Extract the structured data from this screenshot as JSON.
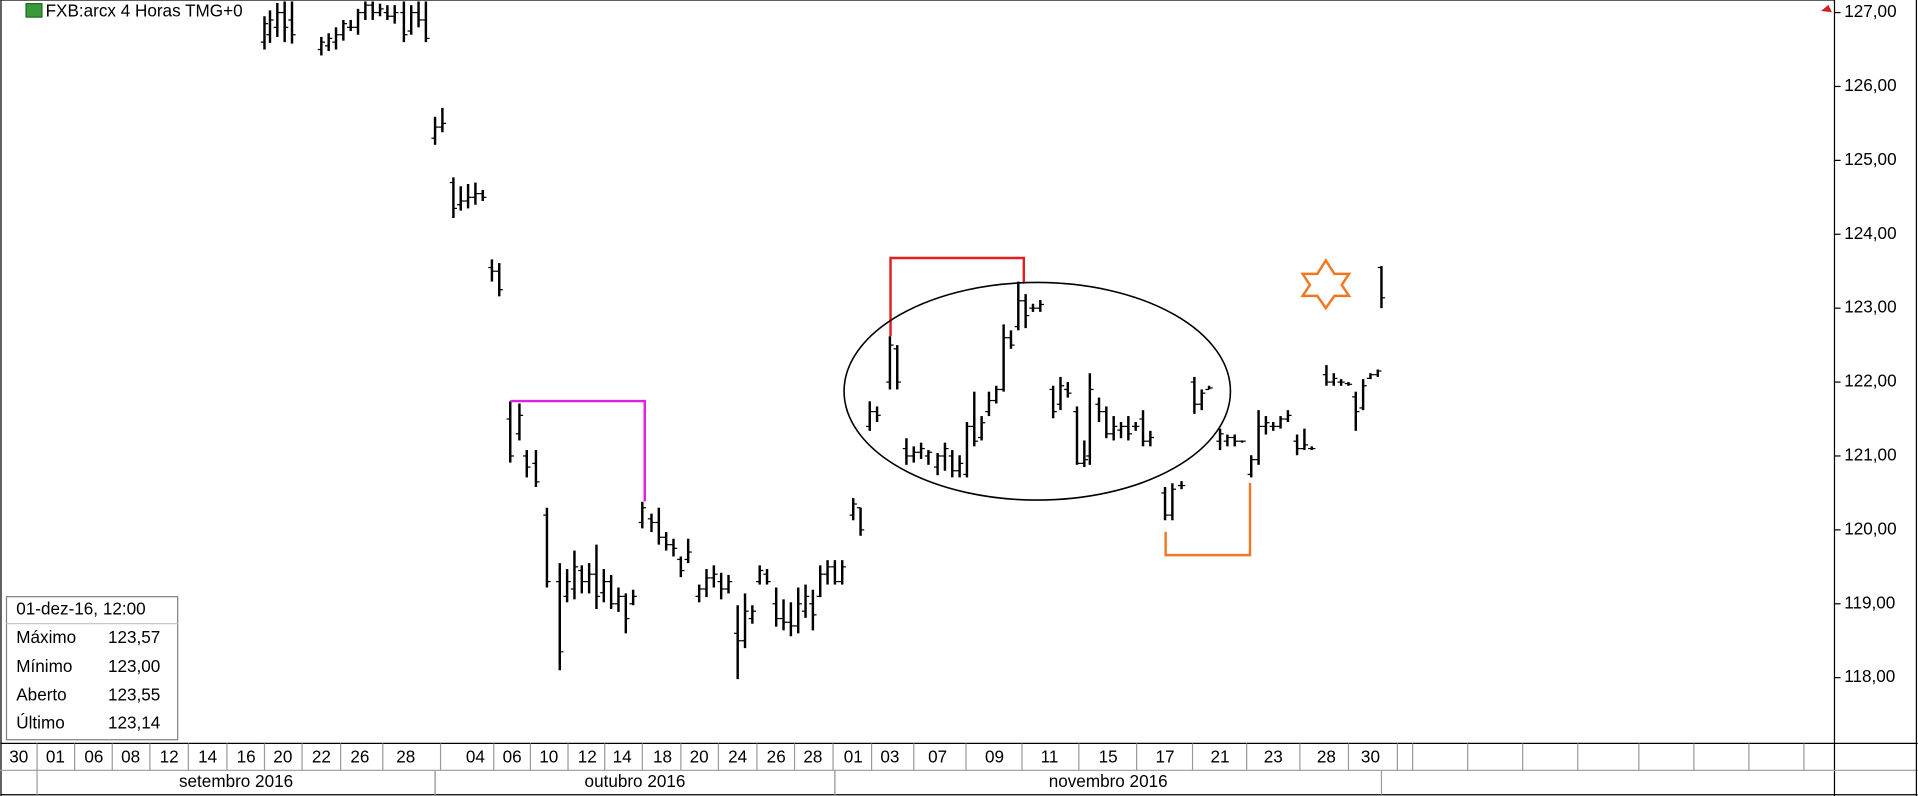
{
  "chart_data": {
    "type": "ohlc",
    "title": "FXB:arcx 4 Horas TMG+0",
    "xlim": [
      0,
      100
    ],
    "ylim": [
      117.16,
      127.17
    ],
    "yticks": [
      {
        "value": 118,
        "label": "118,00"
      },
      {
        "value": 119,
        "label": "119,00"
      },
      {
        "value": 120,
        "label": "120,00"
      },
      {
        "value": 121,
        "label": "121,00"
      },
      {
        "value": 122,
        "label": "122,00"
      },
      {
        "value": 123,
        "label": "123,00"
      },
      {
        "value": 124,
        "label": "124,00"
      },
      {
        "value": 125,
        "label": "125,00"
      },
      {
        "value": 126,
        "label": "126,00"
      },
      {
        "value": 127,
        "label": "127,00"
      }
    ],
    "xticks": [
      {
        "value": 1.0,
        "label": "30"
      },
      {
        "value": 3.0,
        "label": "01"
      },
      {
        "value": 5.1,
        "label": "06"
      },
      {
        "value": 7.1,
        "label": "08"
      },
      {
        "value": 9.2,
        "label": "12"
      },
      {
        "value": 11.3,
        "label": "14"
      },
      {
        "value": 13.4,
        "label": "16"
      },
      {
        "value": 15.4,
        "label": "20"
      },
      {
        "value": 17.5,
        "label": "22"
      },
      {
        "value": 19.6,
        "label": "26"
      },
      {
        "value": 22.1,
        "label": "28"
      },
      {
        "value": 25.9,
        "label": "04"
      },
      {
        "value": 27.9,
        "label": "06"
      },
      {
        "value": 29.9,
        "label": "10"
      },
      {
        "value": 32.0,
        "label": "12"
      },
      {
        "value": 33.9,
        "label": "14"
      },
      {
        "value": 36.1,
        "label": "18"
      },
      {
        "value": 38.1,
        "label": "20"
      },
      {
        "value": 40.2,
        "label": "24"
      },
      {
        "value": 42.3,
        "label": "26"
      },
      {
        "value": 44.3,
        "label": "28"
      },
      {
        "value": 46.5,
        "label": "01"
      },
      {
        "value": 48.5,
        "label": "03"
      },
      {
        "value": 51.1,
        "label": "07"
      },
      {
        "value": 54.2,
        "label": "09"
      },
      {
        "value": 57.2,
        "label": "11"
      },
      {
        "value": 60.4,
        "label": "15"
      },
      {
        "value": 63.5,
        "label": "17"
      },
      {
        "value": 66.5,
        "label": "21"
      },
      {
        "value": 69.4,
        "label": "23"
      },
      {
        "value": 72.3,
        "label": "28"
      },
      {
        "value": 74.7,
        "label": "30"
      }
    ],
    "months": [
      {
        "label": "setembro 2016",
        "start": 2.0,
        "end": 23.7
      },
      {
        "label": "outubro 2016",
        "start": 23.7,
        "end": 45.5
      },
      {
        "label": "novembro 2016",
        "start": 45.5,
        "end": 75.3
      }
    ],
    "color": "#000000",
    "x": [
      14.4,
      14.7,
      15.1,
      15.5,
      15.9,
      17.5,
      17.9,
      18.3,
      18.7,
      19.1,
      19.5,
      19.9,
      20.3,
      20.7,
      21.1,
      21.5,
      22.0,
      22.4,
      22.8,
      23.2,
      23.7,
      24.1,
      24.7,
      25.1,
      25.5,
      25.9,
      26.3,
      26.8,
      27.2,
      27.8,
      28.3,
      28.7,
      29.2,
      29.8,
      30.5,
      30.9,
      31.3,
      31.7,
      32.1,
      32.5,
      32.9,
      33.3,
      33.7,
      34.1,
      34.5,
      35.0,
      35.5,
      35.9,
      36.3,
      36.7,
      37.1,
      37.5,
      38.1,
      38.5,
      38.9,
      39.3,
      39.7,
      40.2,
      40.6,
      41.0,
      41.4,
      41.8,
      42.3,
      42.7,
      43.1,
      43.5,
      43.9,
      44.3,
      44.7,
      45.1,
      45.5,
      45.9,
      46.5,
      46.9,
      47.4,
      47.8,
      48.5,
      48.9,
      49.4,
      49.8,
      50.2,
      50.6,
      51.1,
      51.5,
      51.9,
      52.3,
      52.7,
      53.1,
      53.5,
      53.9,
      54.3,
      54.7,
      55.1,
      55.5,
      55.9,
      56.3,
      56.7,
      57.4,
      57.8,
      58.2,
      58.7,
      59.1,
      59.4,
      59.9,
      60.3,
      60.7,
      61.1,
      61.5,
      61.9,
      62.3,
      62.7,
      63.5,
      63.9,
      64.4,
      65.1,
      65.5,
      65.9,
      66.5,
      66.9,
      67.3,
      67.7,
      68.2,
      68.6,
      69.0,
      69.4,
      69.8,
      70.2,
      70.7,
      71.1,
      71.5,
      72.3,
      72.7,
      73.1,
      73.5,
      73.9,
      74.3,
      74.7,
      75.1,
      75.3
    ],
    "open": [
      126.6,
      126.7,
      126.8,
      127.0,
      126.9,
      126.5,
      126.55,
      126.6,
      126.7,
      126.8,
      126.8,
      127.0,
      127.1,
      127.0,
      127.0,
      126.95,
      127.0,
      126.75,
      127.0,
      126.9,
      125.3,
      125.45,
      124.7,
      124.4,
      124.45,
      124.5,
      124.55,
      123.55,
      123.5,
      121.5,
      121.3,
      121.0,
      120.9,
      120.2,
      119.3,
      119.1,
      119.2,
      119.45,
      119.3,
      119.4,
      119.15,
      119.3,
      119.0,
      119.1,
      119.0,
      120.1,
      120.15,
      120.1,
      119.9,
      119.8,
      119.6,
      119.6,
      119.1,
      119.2,
      119.35,
      119.3,
      119.2,
      118.6,
      118.5,
      118.8,
      119.3,
      119.4,
      119.0,
      118.8,
      118.75,
      118.7,
      118.9,
      119.0,
      119.1,
      119.4,
      119.5,
      119.3,
      120.2,
      120.3,
      121.4,
      121.6,
      122.0,
      122.45,
      121.1,
      121.0,
      121.05,
      121.0,
      120.85,
      121.0,
      121.0,
      120.8,
      120.75,
      121.4,
      121.25,
      121.6,
      121.75,
      121.9,
      122.6,
      122.75,
      123.1,
      123.0,
      123.0,
      121.9,
      121.7,
      121.9,
      121.6,
      120.9,
      121.0,
      121.7,
      121.6,
      121.3,
      121.35,
      121.4,
      121.4,
      121.5,
      121.2,
      120.5,
      120.2,
      120.6,
      122.0,
      121.7,
      121.9,
      121.2,
      121.2,
      121.25,
      121.2,
      120.75,
      120.95,
      121.4,
      121.4,
      121.4,
      121.5,
      121.2,
      121.1,
      121.1,
      122.1,
      122.0,
      122.0,
      121.98,
      121.8,
      121.65,
      122.05,
      122.1,
      123.55
    ],
    "high": [
      126.95,
      127.03,
      127.13,
      127.15,
      127.15,
      126.67,
      126.72,
      126.8,
      126.9,
      126.9,
      127.05,
      127.15,
      127.15,
      127.12,
      127.1,
      127.1,
      127.15,
      127.1,
      127.15,
      127.15,
      125.59,
      125.71,
      124.77,
      124.65,
      124.68,
      124.7,
      124.6,
      123.66,
      123.61,
      121.74,
      121.71,
      121.08,
      121.08,
      120.3,
      119.55,
      119.47,
      119.72,
      119.52,
      119.55,
      119.8,
      119.47,
      119.39,
      119.22,
      119.14,
      119.19,
      120.38,
      120.22,
      120.3,
      119.97,
      119.88,
      119.64,
      119.88,
      119.26,
      119.47,
      119.52,
      119.42,
      119.39,
      118.98,
      119.14,
      118.98,
      119.52,
      119.47,
      119.22,
      119.06,
      119.02,
      119.22,
      119.26,
      119.19,
      119.52,
      119.59,
      119.59,
      119.59,
      120.43,
      120.3,
      121.74,
      121.67,
      122.62,
      122.5,
      121.24,
      121.13,
      121.18,
      121.08,
      121.04,
      121.18,
      121.08,
      121.01,
      121.46,
      121.87,
      121.54,
      121.87,
      121.95,
      122.78,
      122.7,
      123.36,
      123.19,
      123.06,
      123.11,
      121.95,
      122.07,
      122.0,
      121.67,
      121.21,
      122.12,
      121.79,
      121.67,
      121.54,
      121.46,
      121.54,
      121.46,
      121.62,
      121.34,
      120.58,
      120.63,
      120.66,
      122.07,
      121.9,
      121.95,
      121.37,
      121.29,
      121.29,
      121.21,
      121.01,
      121.62,
      121.54,
      121.46,
      121.54,
      121.62,
      121.29,
      121.37,
      121.13,
      122.23,
      122.12,
      122.04,
      122.0,
      121.87,
      122.04,
      122.12,
      122.17,
      123.57
    ],
    "low": [
      126.5,
      126.59,
      126.67,
      126.6,
      126.58,
      126.42,
      126.48,
      126.5,
      126.62,
      126.75,
      126.7,
      126.9,
      126.9,
      126.95,
      126.9,
      126.85,
      126.6,
      126.7,
      126.8,
      126.6,
      125.21,
      125.38,
      124.22,
      124.32,
      124.35,
      124.4,
      124.45,
      123.36,
      123.16,
      120.91,
      121.21,
      120.71,
      120.58,
      119.22,
      118.1,
      119.02,
      119.06,
      119.14,
      119.14,
      118.93,
      119.02,
      118.93,
      118.89,
      118.6,
      118.98,
      120.02,
      119.97,
      119.8,
      119.72,
      119.64,
      119.36,
      119.55,
      119.02,
      119.09,
      119.22,
      119.06,
      119.14,
      117.98,
      118.4,
      118.73,
      119.26,
      119.26,
      118.69,
      118.64,
      118.56,
      118.6,
      118.81,
      118.64,
      119.09,
      119.26,
      119.26,
      119.26,
      120.13,
      119.92,
      121.34,
      121.46,
      121.9,
      121.9,
      120.88,
      120.91,
      120.96,
      120.88,
      120.74,
      120.8,
      120.71,
      120.71,
      120.71,
      121.13,
      121.21,
      121.54,
      121.71,
      121.87,
      122.45,
      122.7,
      122.73,
      122.95,
      122.95,
      121.51,
      121.62,
      121.79,
      120.88,
      120.85,
      120.88,
      121.46,
      121.24,
      121.21,
      121.24,
      121.21,
      121.34,
      121.13,
      121.13,
      120.13,
      120.13,
      120.55,
      121.57,
      121.62,
      121.9,
      121.08,
      121.13,
      121.13,
      121.18,
      120.71,
      120.88,
      121.29,
      121.34,
      121.37,
      121.46,
      121.01,
      121.08,
      121.08,
      121.95,
      121.95,
      121.95,
      121.95,
      121.34,
      121.62,
      122.04,
      122.07,
      123.0
    ],
    "close": [
      126.85,
      126.9,
      127.0,
      126.8,
      126.7,
      126.6,
      126.65,
      126.7,
      126.85,
      126.8,
      127.0,
      127.1,
      127.0,
      127.05,
      126.95,
      127.0,
      126.7,
      127.0,
      126.9,
      126.65,
      125.45,
      125.5,
      124.35,
      124.45,
      124.5,
      124.55,
      124.5,
      123.5,
      123.25,
      121.0,
      121.55,
      120.85,
      120.65,
      119.3,
      118.35,
      119.3,
      119.5,
      119.3,
      119.4,
      119.1,
      119.3,
      119.0,
      119.1,
      118.8,
      119.1,
      120.3,
      120.1,
      119.9,
      119.8,
      119.75,
      119.45,
      119.7,
      119.2,
      119.35,
      119.4,
      119.2,
      119.3,
      118.5,
      118.9,
      118.9,
      119.45,
      119.3,
      118.8,
      118.75,
      118.7,
      119.0,
      119.1,
      118.85,
      119.4,
      119.5,
      119.3,
      119.5,
      120.35,
      120.0,
      121.6,
      121.55,
      122.5,
      122.0,
      121.0,
      121.05,
      121.1,
      121.05,
      121.0,
      121.1,
      120.8,
      120.9,
      121.4,
      121.2,
      121.45,
      121.75,
      121.9,
      122.6,
      122.5,
      123.1,
      122.9,
      123.0,
      123.05,
      121.6,
      121.95,
      121.85,
      120.9,
      120.95,
      121.9,
      121.6,
      121.3,
      121.4,
      121.4,
      121.3,
      121.4,
      121.2,
      121.25,
      120.2,
      120.55,
      120.6,
      121.7,
      121.85,
      121.92,
      121.3,
      121.25,
      121.2,
      121.2,
      120.95,
      121.4,
      121.45,
      121.4,
      121.5,
      121.55,
      121.1,
      121.15,
      121.1,
      122.0,
      122.05,
      122.0,
      121.97,
      121.6,
      121.95,
      122.1,
      122.15,
      123.14
    ]
  },
  "info": {
    "date": "01-dez-16, 12:00",
    "rows": [
      {
        "label": "Máximo",
        "value": "123,57"
      },
      {
        "label": "Mínimo",
        "value": "123,00"
      },
      {
        "label": "Aberto",
        "value": "123,55"
      },
      {
        "label": "Último",
        "value": "123,14"
      }
    ]
  }
}
